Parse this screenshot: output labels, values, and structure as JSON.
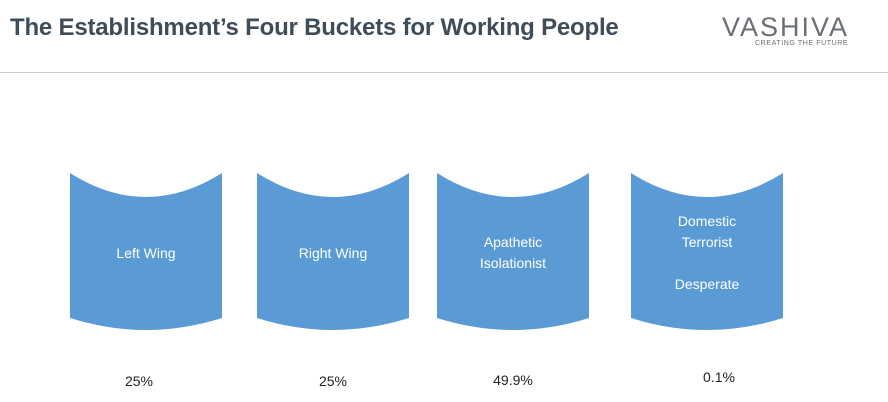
{
  "header": {
    "title": "The Establishment’s Four Buckets for Working People",
    "logo": {
      "name": "VASHIVA",
      "tagline": "CREATING THE FUTURE"
    }
  },
  "colors": {
    "bucket_fill": "#5b9bd5",
    "title_text": "#3f4d5a"
  },
  "buckets": [
    {
      "lines": [
        "Left Wing"
      ],
      "percent": "25%"
    },
    {
      "lines": [
        "Right Wing"
      ],
      "percent": "25%"
    },
    {
      "lines": [
        "Apathetic",
        "Isolationist"
      ],
      "percent": "49.9%"
    },
    {
      "lines": [
        "Domestic",
        "Terrorist",
        "",
        "Desperate"
      ],
      "percent": "0.1%"
    }
  ]
}
